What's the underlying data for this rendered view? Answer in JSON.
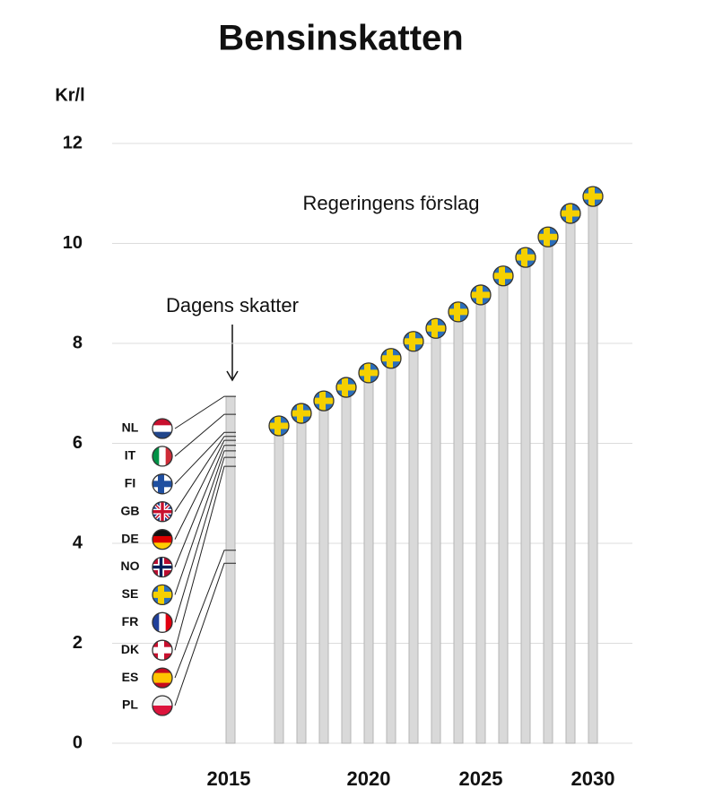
{
  "chart_data": {
    "type": "bar",
    "title": "Bensinskatten",
    "y_label": "Kr/l",
    "annotations": [
      "Regeringens förslag",
      "Dagens skatter"
    ],
    "ylim": [
      0,
      12
    ],
    "yticks": [
      0,
      2,
      4,
      6,
      8,
      10,
      12
    ],
    "grid": true,
    "color": "#d9d9d9",
    "categories": [
      null,
      null,
      null,
      null,
      "2020",
      null,
      null,
      null,
      null,
      "2025",
      null,
      null,
      null,
      null,
      "2030"
    ],
    "values": [
      6.35,
      6.6,
      6.85,
      7.12,
      7.41,
      7.7,
      8.04,
      8.3,
      8.63,
      8.97,
      9.35,
      9.72,
      10.13,
      10.6,
      10.94
    ],
    "current": {
      "category": "2015",
      "value": 6.94,
      "countries": [
        "NL",
        "IT",
        "FI",
        "GB",
        "DE",
        "NO",
        "SE",
        "FR",
        "DK",
        "ES",
        "PL"
      ],
      "values": [
        6.94,
        6.58,
        6.22,
        6.14,
        6.06,
        5.96,
        5.85,
        5.72,
        5.54,
        3.86,
        3.6
      ]
    }
  }
}
